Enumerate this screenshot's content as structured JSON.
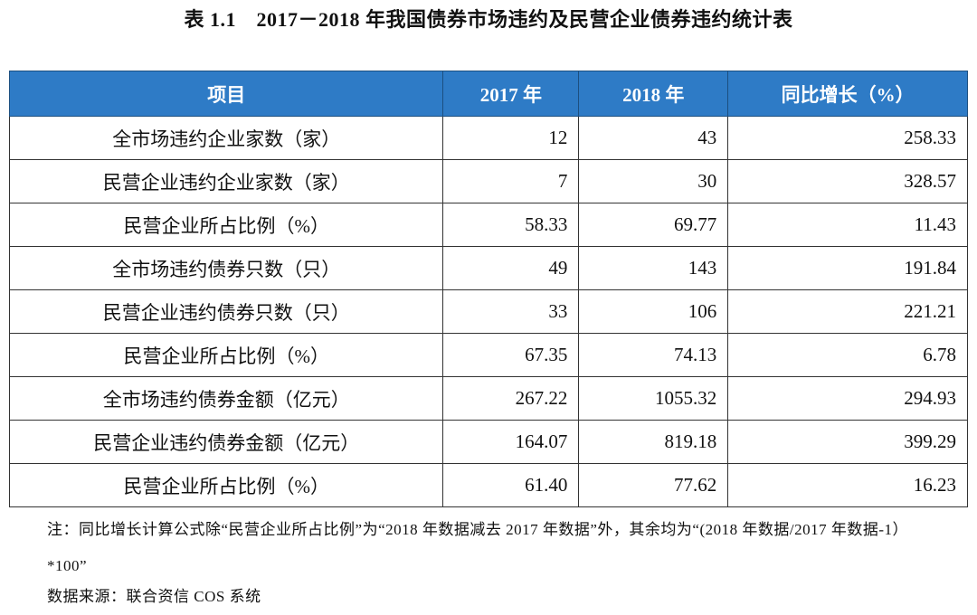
{
  "header": {
    "title": "表 1.1　2017－2018 年我国债券市场违约及民营企业债券违约统计表"
  },
  "table": {
    "columns": [
      "项目",
      "2017 年",
      "2018 年",
      "同比增长（%）"
    ],
    "rows": [
      [
        "全市场违约企业家数（家）",
        "12",
        "43",
        "258.33"
      ],
      [
        "民营企业违约企业家数（家）",
        "7",
        "30",
        "328.57"
      ],
      [
        "民营企业所占比例（%）",
        "58.33",
        "69.77",
        "11.43"
      ],
      [
        "全市场违约债券只数（只）",
        "49",
        "143",
        "191.84"
      ],
      [
        "民营企业违约债券只数（只）",
        "33",
        "106",
        "221.21"
      ],
      [
        "民营企业所占比例（%）",
        "67.35",
        "74.13",
        "6.78"
      ],
      [
        "全市场违约债券金额（亿元）",
        "267.22",
        "1055.32",
        "294.93"
      ],
      [
        "民营企业违约债券金额（亿元）",
        "164.07",
        "819.18",
        "399.29"
      ],
      [
        "民营企业所占比例（%）",
        "61.40",
        "77.62",
        "16.23"
      ]
    ]
  },
  "footer": {
    "note": "注：同比增长计算公式除“民营企业所占比例”为“2018 年数据减去 2017 年数据”外，其余均为“(2018 年数据/2017 年数据-1）*100”",
    "source": "数据来源：联合资信 COS 系统"
  }
}
